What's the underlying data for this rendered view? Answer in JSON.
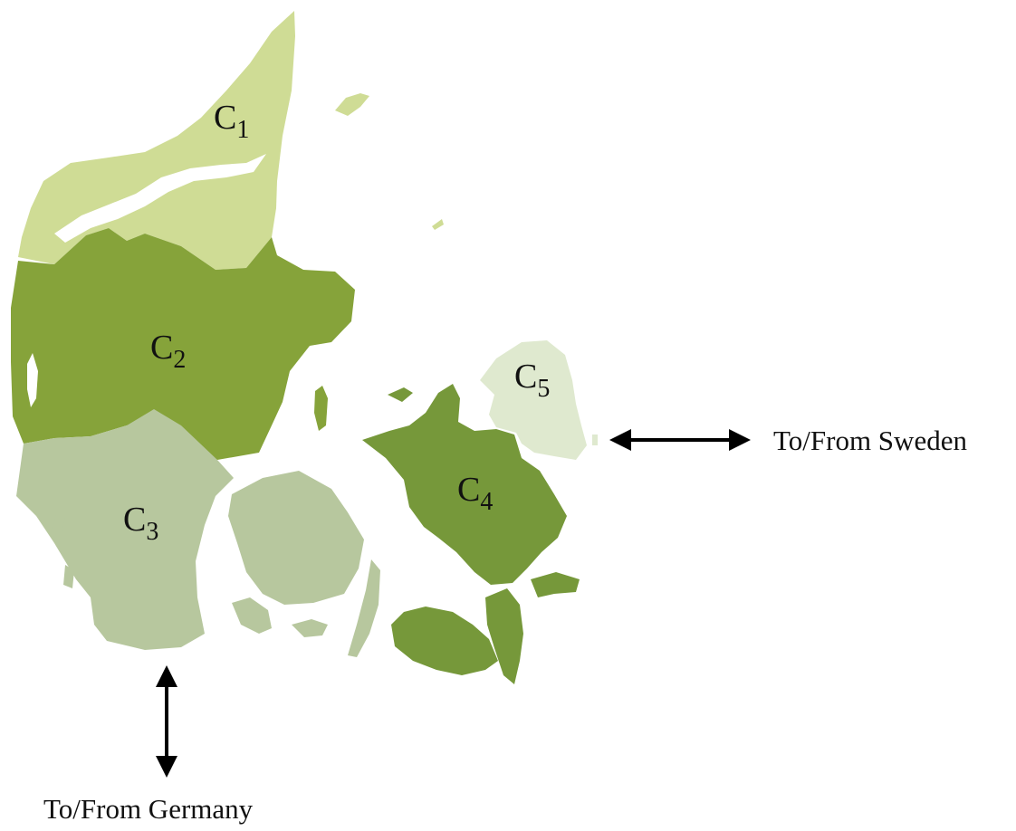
{
  "regions": [
    {
      "id": "C1",
      "letter": "C",
      "index": "1",
      "color": "#cfdc95"
    },
    {
      "id": "C2",
      "letter": "C",
      "index": "2",
      "color": "#86a33a"
    },
    {
      "id": "C3",
      "letter": "C",
      "index": "3",
      "color": "#b7c79e"
    },
    {
      "id": "C4",
      "letter": "C",
      "index": "4",
      "color": "#76983a"
    },
    {
      "id": "C5",
      "letter": "C",
      "index": "5",
      "color": "#dfe9cf"
    }
  ],
  "connections": {
    "sweden": {
      "label": "To/From Sweden"
    },
    "germany": {
      "label": "To/From Germany"
    }
  }
}
